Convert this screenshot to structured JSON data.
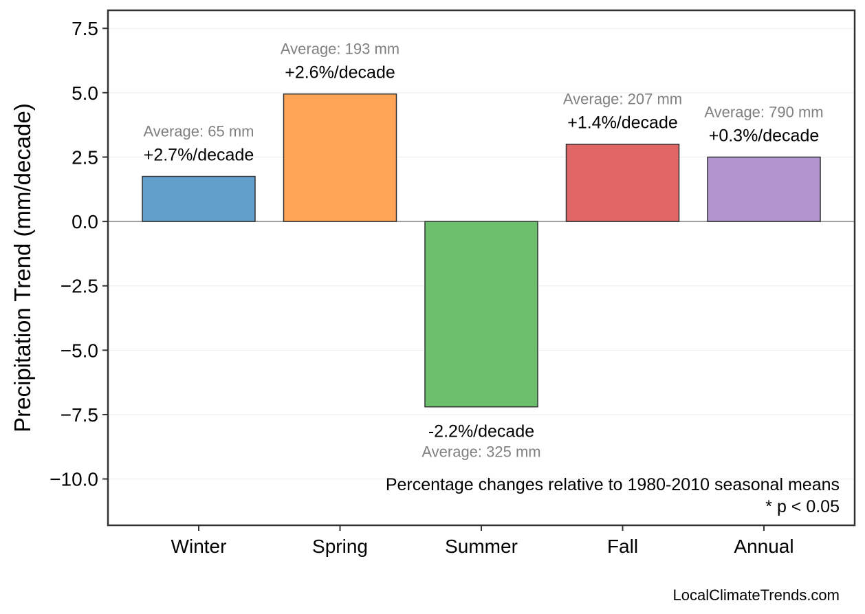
{
  "chart_data": {
    "type": "bar",
    "categories": [
      "Winter",
      "Spring",
      "Summer",
      "Fall",
      "Annual"
    ],
    "values": [
      1.75,
      4.95,
      -7.2,
      3.0,
      2.5
    ],
    "percent_labels": [
      "+2.7%/decade",
      "+2.6%/decade",
      "-2.2%/decade",
      "+1.4%/decade",
      "+0.3%/decade"
    ],
    "average_labels": [
      "Average: 65 mm",
      "Average: 193 mm",
      "Average: 325 mm",
      "Average: 207 mm",
      "Average: 790 mm"
    ],
    "colors": [
      "#62a0cb",
      "#ffa555",
      "#6bbe6b",
      "#e06666",
      "#b294ce"
    ],
    "ylabel": "Precipitation Trend (mm/decade)",
    "ylim": [
      -11.8,
      8.2
    ],
    "yticks": [
      7.5,
      5.0,
      2.5,
      0.0,
      -2.5,
      -5.0,
      -7.5,
      -10.0
    ],
    "ytick_labels": [
      "7.5",
      "5.0",
      "2.5",
      "0.0",
      "−2.5",
      "−5.0",
      "−7.5",
      "−10.0"
    ],
    "grid": true,
    "note_lines": [
      "Percentage changes relative to 1980-2010 seasonal means",
      "* p < 0.05"
    ]
  },
  "credit": "LocalClimateTrends.com"
}
